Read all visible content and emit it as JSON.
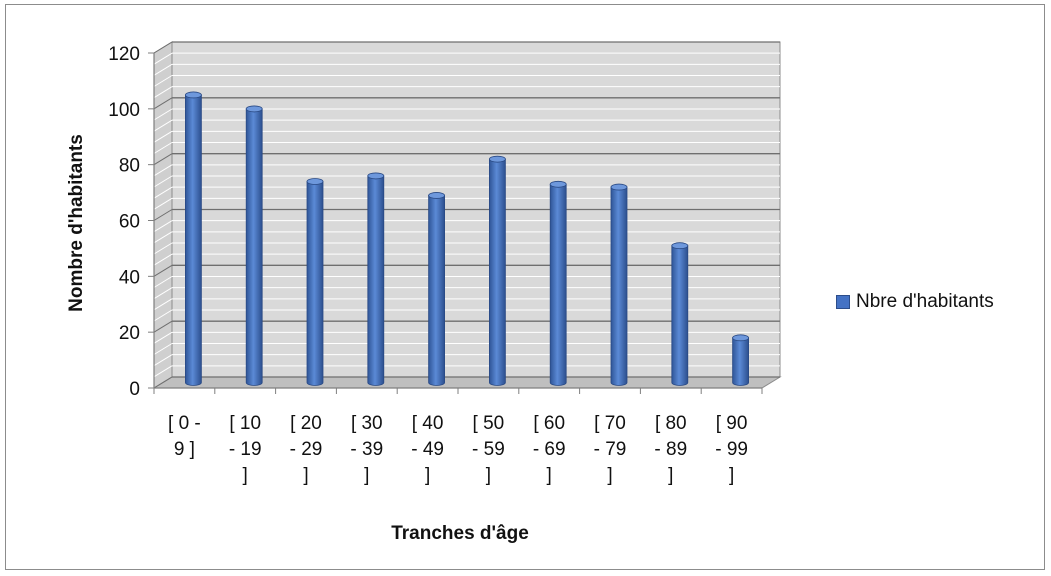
{
  "chart_data": {
    "type": "bar",
    "title": "",
    "xlabel": "Tranches d'âge",
    "ylabel": "Nombre d'habitants",
    "categories": [
      [
        "[ 0 -",
        "9 ]"
      ],
      [
        "[ 10",
        "- 19",
        "]"
      ],
      [
        "[ 20",
        "- 29",
        "]"
      ],
      [
        "[ 30",
        "- 39",
        "]"
      ],
      [
        "[ 40",
        "- 49",
        "]"
      ],
      [
        "[ 50",
        "- 59",
        "]"
      ],
      [
        "[ 60",
        "- 69",
        "]"
      ],
      [
        "[ 70",
        "- 79",
        "]"
      ],
      [
        "[ 80",
        "- 89",
        "]"
      ],
      [
        "[ 90",
        "- 99",
        "]"
      ]
    ],
    "series": [
      {
        "name": "Nbre d'habitants",
        "values": [
          103,
          98,
          72,
          74,
          67,
          80,
          71,
          70,
          49,
          16
        ],
        "color": "#4472c4"
      }
    ],
    "ylim": [
      0,
      120
    ],
    "yticks": [
      "0",
      "20",
      "40",
      "60",
      "80",
      "100",
      "120"
    ],
    "grid": true,
    "legend": "right"
  }
}
